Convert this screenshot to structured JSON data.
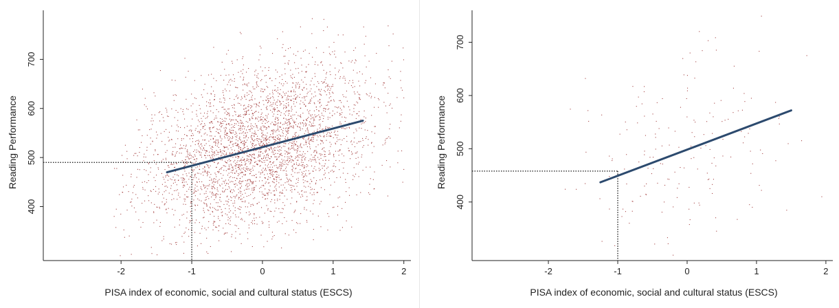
{
  "chart_data": [
    {
      "type": "scatter",
      "title": "",
      "xlabel": "PISA index of economic, social and cultural status (ESCS)",
      "ylabel": "Reading Performance",
      "xlim": [
        -3.1,
        2.1
      ],
      "ylim": [
        290,
        800
      ],
      "xticks": [
        -2,
        -1,
        0,
        1,
        2
      ],
      "yticks": [
        400,
        500,
        600,
        700
      ],
      "grid": false,
      "point_color": "#9b2c2c",
      "line_color": "#2c4a6e",
      "points": {
        "count": 3500,
        "x_mean": -0.05,
        "x_sd": 0.82,
        "x_range": [
          -2.1,
          2.0
        ],
        "residual_sd": 80,
        "y_range": [
          300,
          790
        ]
      },
      "regression_line": {
        "x": [
          -1.35,
          1.42
        ],
        "y": [
          470,
          575
        ]
      },
      "reference": {
        "x": -1,
        "y": 490
      }
    },
    {
      "type": "scatter",
      "title": "",
      "xlabel": "PISA index of economic, social and cultural status (ESCS)",
      "ylabel": "Reading Performance",
      "xlim": [
        -3.1,
        2.1
      ],
      "ylim": [
        290,
        760
      ],
      "xticks": [
        -2,
        -1,
        0,
        1,
        2
      ],
      "yticks": [
        400,
        500,
        600,
        700
      ],
      "grid": false,
      "point_color": "#9b2c2c",
      "line_color": "#2c4a6e",
      "points": {
        "count": 180,
        "x_mean": 0.0,
        "x_sd": 0.8,
        "x_range": [
          -1.8,
          2.0
        ],
        "residual_sd": 95,
        "y_range": [
          300,
          755
        ]
      },
      "regression_line": {
        "x": [
          -1.25,
          1.5
        ],
        "y": [
          437,
          572
        ]
      },
      "reference": {
        "x": -1,
        "y": 458
      }
    }
  ]
}
